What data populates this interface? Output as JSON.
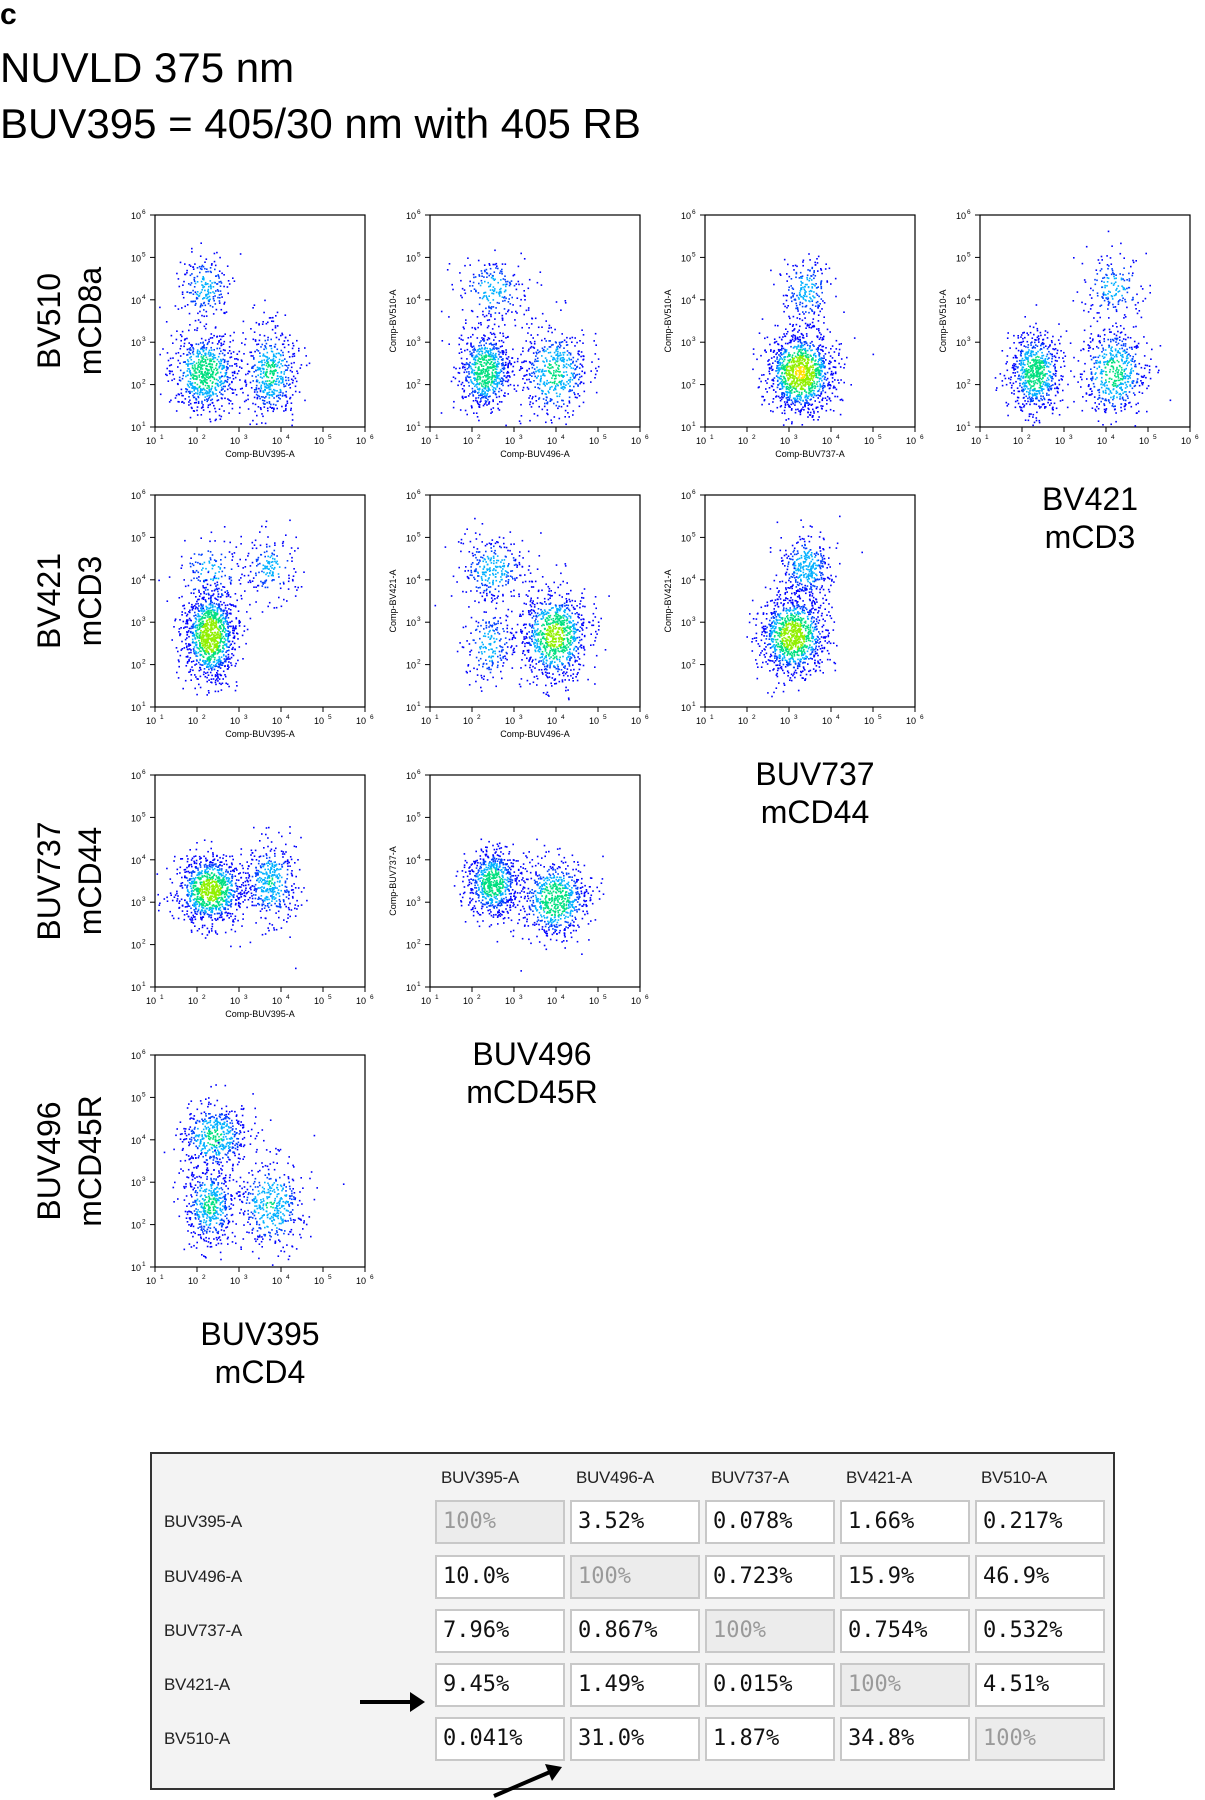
{
  "panel_letter": "c",
  "title_line1": "NUVLD 375 nm",
  "title_line2": "BUV395 = 405/30 nm with 405 RB",
  "chart_data": {
    "type": "scatter",
    "panels": [
      {
        "row": 0,
        "col": 0,
        "x_axis_label": "Comp-BUV395-A",
        "y_axis_label": "",
        "xlim": [
          10,
          1000000
        ],
        "ylim": [
          10,
          1000000
        ],
        "scale": "log",
        "populations": [
          {
            "x": 150,
            "y": 20000,
            "weight": 0.15
          },
          {
            "x": 150,
            "y": 200,
            "weight": 0.5
          },
          {
            "x": 5500,
            "y": 200,
            "weight": 0.35
          }
        ]
      },
      {
        "row": 0,
        "col": 1,
        "x_axis_label": "Comp-BUV496-A",
        "y_axis_label": "Comp-BV510-A",
        "xlim": [
          10,
          1000000
        ],
        "ylim": [
          10,
          1000000
        ],
        "scale": "log",
        "populations": [
          {
            "x": 300,
            "y": 18000,
            "weight": 0.15
          },
          {
            "x": 200,
            "y": 220,
            "weight": 0.5
          },
          {
            "x": 9000,
            "y": 200,
            "weight": 0.35
          }
        ]
      },
      {
        "row": 0,
        "col": 2,
        "x_axis_label": "Comp-BUV737-A",
        "y_axis_label": "Comp-BV510-A",
        "xlim": [
          10,
          1000000
        ],
        "ylim": [
          10,
          1000000
        ],
        "scale": "log",
        "populations": [
          {
            "x": 2500,
            "y": 18000,
            "weight": 0.15
          },
          {
            "x": 1800,
            "y": 200,
            "weight": 0.85
          }
        ]
      },
      {
        "row": 0,
        "col": 3,
        "x_axis_label": "",
        "y_axis_label": "Comp-BV510-A",
        "xlim": [
          10,
          1000000
        ],
        "ylim": [
          10,
          1000000
        ],
        "scale": "log",
        "populations": [
          {
            "x": 15000,
            "y": 20000,
            "weight": 0.12
          },
          {
            "x": 200,
            "y": 200,
            "weight": 0.5
          },
          {
            "x": 15000,
            "y": 200,
            "weight": 0.38
          }
        ]
      },
      {
        "row": 1,
        "col": 0,
        "x_axis_label": "Comp-BUV395-A",
        "y_axis_label": "",
        "xlim": [
          10,
          1000000
        ],
        "ylim": [
          10,
          1000000
        ],
        "scale": "log",
        "populations": [
          {
            "x": 5500,
            "y": 20000,
            "weight": 0.12
          },
          {
            "x": 200,
            "y": 15000,
            "weight": 0.1
          },
          {
            "x": 200,
            "y": 500,
            "weight": 0.78
          }
        ]
      },
      {
        "row": 1,
        "col": 1,
        "x_axis_label": "Comp-BUV496-A",
        "y_axis_label": "Comp-BV421-A",
        "xlim": [
          10,
          1000000
        ],
        "ylim": [
          10,
          1000000
        ],
        "scale": "log",
        "populations": [
          {
            "x": 300,
            "y": 18000,
            "weight": 0.2
          },
          {
            "x": 250,
            "y": 300,
            "weight": 0.15
          },
          {
            "x": 9000,
            "y": 500,
            "weight": 0.65
          }
        ]
      },
      {
        "row": 1,
        "col": 2,
        "x_axis_label": "",
        "y_axis_label": "Comp-BV421-A",
        "xlim": [
          10,
          1000000
        ],
        "ylim": [
          10,
          1000000
        ],
        "scale": "log",
        "populations": [
          {
            "x": 2500,
            "y": 20000,
            "weight": 0.25
          },
          {
            "x": 1200,
            "y": 500,
            "weight": 0.75
          }
        ]
      },
      {
        "row": 2,
        "col": 0,
        "x_axis_label": "Comp-BUV395-A",
        "y_axis_label": "",
        "xlim": [
          10,
          1000000
        ],
        "ylim": [
          10,
          1000000
        ],
        "scale": "log",
        "populations": [
          {
            "x": 200,
            "y": 2000,
            "weight": 0.7
          },
          {
            "x": 5500,
            "y": 3000,
            "weight": 0.3
          }
        ]
      },
      {
        "row": 2,
        "col": 1,
        "x_axis_label": "",
        "y_axis_label": "Comp-BUV737-A",
        "xlim": [
          10,
          1000000
        ],
        "ylim": [
          10,
          1000000
        ],
        "scale": "log",
        "populations": [
          {
            "x": 300,
            "y": 3000,
            "weight": 0.5
          },
          {
            "x": 9000,
            "y": 1200,
            "weight": 0.5
          }
        ]
      },
      {
        "row": 3,
        "col": 0,
        "x_axis_label": "",
        "y_axis_label": "",
        "xlim": [
          10,
          1000000
        ],
        "ylim": [
          10,
          1000000
        ],
        "scale": "log",
        "populations": [
          {
            "x": 250,
            "y": 12000,
            "weight": 0.35
          },
          {
            "x": 200,
            "y": 300,
            "weight": 0.35
          },
          {
            "x": 5500,
            "y": 300,
            "weight": 0.3
          }
        ]
      }
    ],
    "tick_labels": [
      "10",
      "10",
      "10",
      "10",
      "10",
      "10"
    ],
    "tick_exponents": [
      "1",
      "2",
      "3",
      "4",
      "5",
      "6"
    ],
    "row_labels": [
      {
        "line1": "BV510",
        "line2": "mCD8a"
      },
      {
        "line1": "BV421",
        "line2": "mCD3"
      },
      {
        "line1": "BUV737",
        "line2": "mCD44"
      },
      {
        "line1": "BUV496",
        "line2": "mCD45R"
      }
    ],
    "column_labels": [
      {
        "line1": "BUV395",
        "line2": "mCD4"
      },
      {
        "line1": "BUV496",
        "line2": "mCD45R"
      },
      {
        "line1": "BUV737",
        "line2": "mCD44"
      },
      {
        "line1": "BV421",
        "line2": "mCD3"
      }
    ]
  },
  "spillover_matrix": {
    "columns": [
      "BUV395-A",
      "BUV496-A",
      "BUV737-A",
      "BV421-A",
      "BV510-A"
    ],
    "rows": [
      {
        "label": "BUV395-A",
        "values": [
          "100%",
          "3.52%",
          "0.078%",
          "1.66%",
          "0.217%"
        ]
      },
      {
        "label": "BUV496-A",
        "values": [
          "10.0%",
          "100%",
          "0.723%",
          "15.9%",
          "46.9%"
        ]
      },
      {
        "label": "BUV737-A",
        "values": [
          "7.96%",
          "0.867%",
          "100%",
          "0.754%",
          "0.532%"
        ]
      },
      {
        "label": "BV421-A",
        "values": [
          "9.45%",
          "1.49%",
          "0.015%",
          "100%",
          "4.51%"
        ]
      },
      {
        "label": "BV510-A",
        "values": [
          "0.041%",
          "31.0%",
          "1.87%",
          "34.8%",
          "100%"
        ]
      }
    ],
    "highlighted": [
      {
        "row": 3,
        "col": 0
      },
      {
        "row": 4,
        "col": 1
      }
    ]
  }
}
